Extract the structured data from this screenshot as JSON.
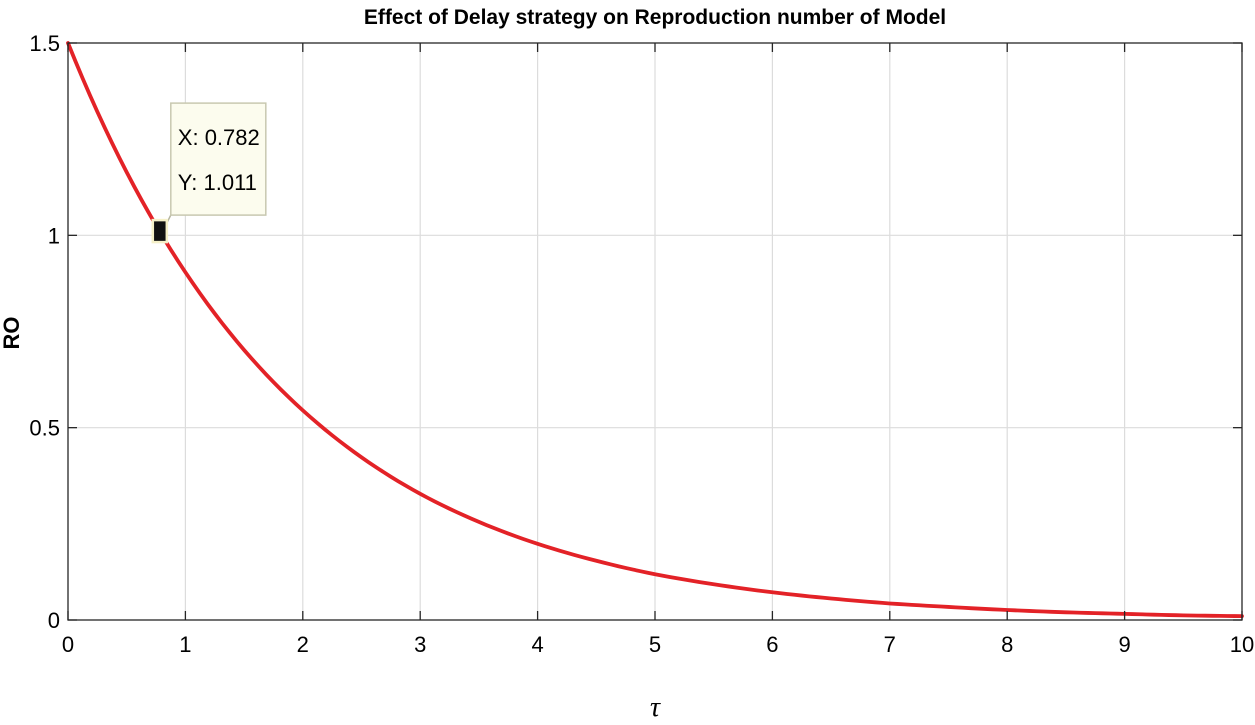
{
  "chart_data": {
    "type": "line",
    "title": "Effect of Delay strategy on Reproduction number of Model",
    "xlabel": "τ",
    "ylabel": "RO",
    "xlim": [
      0,
      10
    ],
    "ylim": [
      0,
      1.5
    ],
    "xticks": [
      0,
      1,
      2,
      3,
      4,
      5,
      6,
      7,
      8,
      9,
      10
    ],
    "yticks": [
      0,
      0.5,
      1,
      1.5
    ],
    "xtick_labels": [
      "0",
      "1",
      "2",
      "3",
      "4",
      "5",
      "6",
      "7",
      "8",
      "9",
      "10"
    ],
    "ytick_labels": [
      "0",
      "0.5",
      "1",
      "1.5"
    ],
    "grid": true,
    "series": [
      {
        "color": "#e32227",
        "x": [
          0,
          0.5,
          1,
          1.5,
          2,
          2.5,
          3,
          3.5,
          4,
          4.5,
          5,
          5.5,
          6,
          6.5,
          7,
          7.5,
          8,
          8.5,
          9,
          9.5,
          10
        ],
        "values": [
          1.5,
          1.164,
          0.904,
          0.702,
          0.545,
          0.423,
          0.328,
          0.255,
          0.198,
          0.154,
          0.119,
          0.093,
          0.072,
          0.056,
          0.043,
          0.034,
          0.026,
          0.02,
          0.016,
          0.012,
          0.01
        ]
      }
    ],
    "datatip": {
      "x": 0.782,
      "y": 1.011,
      "x_text": "X: 0.782",
      "y_text": "Y: 1.011"
    }
  }
}
